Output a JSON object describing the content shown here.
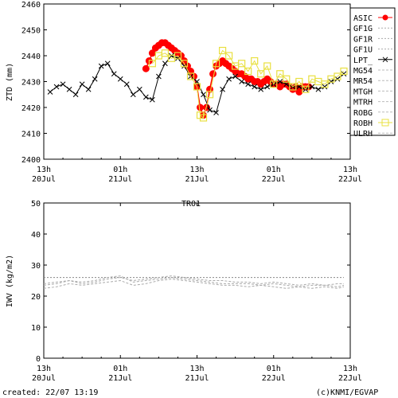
{
  "footer": {
    "created": "created: 22/07 13:19",
    "copyright": "(c)KNMI/EGVAP"
  },
  "chart_data": [
    {
      "type": "line",
      "title": "",
      "xlabel": "",
      "ylabel": "ZTD (mm)",
      "xlim": [
        0,
        48
      ],
      "ylim": [
        2400,
        2460
      ],
      "yticks": [
        2400,
        2410,
        2420,
        2430,
        2440,
        2450,
        2460
      ],
      "xticks": [
        {
          "x": 0,
          "top": "13h",
          "bottom": "20Jul"
        },
        {
          "x": 12,
          "top": "01h",
          "bottom": "21Jul"
        },
        {
          "x": 24,
          "top": "13h",
          "bottom": "21Jul"
        },
        {
          "x": 36,
          "top": "01h",
          "bottom": "22Jul"
        },
        {
          "x": 48,
          "top": "13h",
          "bottom": "22Jul"
        }
      ],
      "grid": false,
      "legend_position": "right",
      "series": [
        {
          "name": "ASIC",
          "color": "#ff0000",
          "marker": "filled-circle",
          "x": [
            16.0,
            16.5,
            17.0,
            17.5,
            18.0,
            18.5,
            19.0,
            19.5,
            20.0,
            20.5,
            21.0,
            21.5,
            22.0,
            22.5,
            23.0,
            23.5,
            24.0,
            24.5,
            25.0,
            25.5,
            26.0,
            26.5,
            27.0,
            27.5,
            28.0,
            28.5,
            29.0,
            29.5,
            30.0,
            30.5,
            31.0,
            31.5,
            32.0,
            32.5,
            33.0,
            33.5,
            34.0,
            34.5,
            35.0,
            35.5,
            36.0,
            36.5,
            37.0,
            37.5,
            38.0,
            38.5,
            39.0,
            39.5,
            40.0,
            40.5,
            41.0,
            41.5
          ],
          "y": [
            2435,
            2438,
            2441,
            2443,
            2444,
            2445,
            2445,
            2444,
            2443,
            2442,
            2441,
            2440,
            2438,
            2436,
            2434,
            2432,
            2428,
            2420,
            2417,
            2420,
            2427,
            2433,
            2436,
            2437,
            2438,
            2437,
            2436,
            2435,
            2434,
            2433,
            2433,
            2432,
            2431,
            2431,
            2430,
            2430,
            2429,
            2430,
            2431,
            2430,
            2429,
            2429,
            2428,
            2429,
            2429,
            2428,
            2427,
            2428,
            2426,
            2428,
            2428,
            2428
          ]
        },
        {
          "name": "GF1G",
          "color": "#aaaaaa",
          "dash": "2,2",
          "x": [],
          "y": []
        },
        {
          "name": "GF1R",
          "color": "#aaaaaa",
          "dash": "2,2",
          "x": [],
          "y": []
        },
        {
          "name": "GF1U",
          "color": "#aaaaaa",
          "dash": "2,2",
          "x": [],
          "y": []
        },
        {
          "name": "LPT_",
          "color": "#000000",
          "marker": "x",
          "x": [
            1,
            2,
            3,
            4,
            5,
            6,
            7,
            8,
            9,
            10,
            11,
            12,
            13,
            14,
            15,
            16,
            17,
            18,
            19,
            20,
            21,
            22,
            23,
            24,
            25,
            26,
            27,
            28,
            29,
            30,
            31,
            32,
            33,
            34,
            35,
            36,
            37,
            38,
            39,
            40,
            41,
            42,
            43,
            44,
            45,
            46,
            47
          ],
          "y": [
            2426,
            2428,
            2429,
            2427,
            2425,
            2429,
            2427,
            2431,
            2436,
            2437,
            2433,
            2431,
            2429,
            2425,
            2427,
            2424,
            2423,
            2432,
            2437,
            2440,
            2439,
            2436,
            2432,
            2430,
            2425,
            2419,
            2418,
            2427,
            2431,
            2432,
            2430,
            2429,
            2428,
            2427,
            2428,
            2429,
            2430,
            2429,
            2428,
            2428,
            2427,
            2428,
            2427,
            2428,
            2430,
            2431,
            2433
          ]
        },
        {
          "name": "MG54",
          "color": "#bbbbbb",
          "dash": "3,2",
          "x": [],
          "y": []
        },
        {
          "name": "MR54",
          "color": "#bbbbbb",
          "dash": "3,2",
          "x": [],
          "y": []
        },
        {
          "name": "MTGH",
          "color": "#bbbbbb",
          "dash": "3,2",
          "x": [],
          "y": []
        },
        {
          "name": "MTRH",
          "color": "#bbbbbb",
          "dash": "3,2",
          "x": [],
          "y": []
        },
        {
          "name": "ROBG",
          "color": "#bbbbbb",
          "dash": "3,2",
          "x": [],
          "y": []
        },
        {
          "name": "ROBH",
          "color": "#e8e040",
          "marker": "open-square",
          "x": [
            17.0,
            18.0,
            19.0,
            20.0,
            21.0,
            22.0,
            23.0,
            24.0,
            24.5,
            25.0,
            26.0,
            27.0,
            28.0,
            29.0,
            30.0,
            31.0,
            32.0,
            33.0,
            34.0,
            35.0,
            36.0,
            37.0,
            38.0,
            39.0,
            40.0,
            41.0,
            42.0,
            43.0,
            44.0,
            45.0,
            46.0,
            47.0
          ],
          "y": [
            2437,
            2440,
            2441,
            2439,
            2440,
            2437,
            2432,
            2428,
            2417,
            2416,
            2425,
            2437,
            2442,
            2440,
            2436,
            2437,
            2434,
            2438,
            2433,
            2436,
            2429,
            2433,
            2431,
            2428,
            2430,
            2427,
            2431,
            2430,
            2429,
            2431,
            2432,
            2434
          ]
        },
        {
          "name": "ULRH",
          "color": "#bbbbbb",
          "dash": "3,2",
          "x": [],
          "y": []
        }
      ]
    },
    {
      "type": "line",
      "title": "TRO1",
      "xlabel": "",
      "ylabel": "IWV (kg/m2)",
      "xlim": [
        0,
        48
      ],
      "ylim": [
        0,
        50
      ],
      "yticks": [
        0,
        10,
        20,
        30,
        40,
        50
      ],
      "xticks": [
        {
          "x": 0,
          "top": "13h",
          "bottom": "20Jul"
        },
        {
          "x": 12,
          "top": "01h",
          "bottom": "21Jul"
        },
        {
          "x": 24,
          "top": "13h",
          "bottom": "21Jul"
        },
        {
          "x": 36,
          "top": "01h",
          "bottom": "22Jul"
        },
        {
          "x": 48,
          "top": "13h",
          "bottom": "22Jul"
        }
      ],
      "grid": false,
      "series": [
        {
          "color": "#888888",
          "dash": "2,2",
          "x": [
            0,
            2,
            4,
            6,
            8,
            10,
            12,
            14,
            16,
            18,
            20,
            22,
            24,
            26,
            28,
            30,
            32,
            34,
            36,
            38,
            40,
            42,
            44,
            46,
            47
          ],
          "y": [
            26,
            26,
            26,
            26,
            26,
            26,
            26,
            26,
            26,
            26,
            26,
            26,
            26,
            26,
            26,
            26,
            26,
            26,
            26,
            26,
            26,
            26,
            26,
            26,
            26
          ]
        },
        {
          "color": "#aaaaaa",
          "dash": "3,2",
          "x": [
            0,
            2,
            4,
            6,
            8,
            10,
            12,
            14,
            16,
            18,
            20,
            22,
            24,
            26,
            28,
            30,
            32,
            34,
            36,
            38,
            40,
            42,
            44,
            46,
            47
          ],
          "y": [
            24,
            24.5,
            25,
            24,
            24.5,
            25.5,
            26,
            25,
            25.5,
            26,
            26.5,
            26,
            25.5,
            25,
            25,
            24.5,
            24.5,
            24,
            24.5,
            24,
            23.5,
            24,
            23.5,
            24,
            24
          ]
        },
        {
          "color": "#aaaaaa",
          "dash": "3,2",
          "x": [
            0,
            2,
            4,
            6,
            8,
            10,
            12,
            14,
            16,
            18,
            20,
            22,
            24,
            26,
            28,
            30,
            32,
            34,
            36,
            38,
            40,
            42,
            44,
            46,
            47
          ],
          "y": [
            22.5,
            23,
            24,
            23.5,
            24,
            24.5,
            25,
            23.5,
            24,
            25,
            25.5,
            25,
            24.5,
            24,
            23.5,
            23.5,
            23,
            23.5,
            23,
            22.5,
            23,
            22.5,
            23,
            22.5,
            23
          ]
        },
        {
          "color": "#aaaaaa",
          "dash": "3,2",
          "x": [
            0,
            2,
            4,
            6,
            8,
            10,
            12,
            14,
            16,
            18,
            20,
            22,
            24,
            26,
            28,
            30,
            32,
            34,
            36,
            38,
            40,
            42,
            44,
            46,
            47
          ],
          "y": [
            23.5,
            24,
            25,
            24.5,
            25,
            26,
            26.5,
            24.5,
            25,
            25.5,
            26,
            25.5,
            25,
            24.5,
            24,
            24,
            24,
            23.5,
            24,
            23.5,
            23,
            23.5,
            23.5,
            23,
            23.5
          ]
        }
      ]
    }
  ]
}
